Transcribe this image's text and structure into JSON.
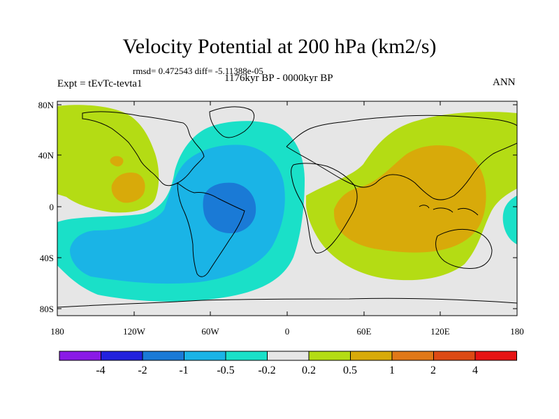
{
  "header": {
    "title": "Velocity Potential at 200 hPa (km2/s)",
    "stats": "rmsd= 0.472543 diff= -5.11388e-05",
    "experiment": "Expt = tEvTc-tevta1",
    "period": "1176kyr BP - 0000kyr BP",
    "season": "ANN"
  },
  "axes": {
    "lat_labels": [
      "80N",
      "40N",
      "0",
      "40S",
      "80S"
    ],
    "lon_labels": [
      "180",
      "120W",
      "60W",
      "0",
      "60E",
      "120E",
      "180"
    ]
  },
  "colorbar": {
    "labels": [
      "-4",
      "-2",
      "-1",
      "-0.5",
      "-0.2",
      "0.2",
      "0.5",
      "1",
      "2",
      "4"
    ],
    "colors": [
      "#8a1ae6",
      "#2222dd",
      "#1a7ad6",
      "#1ab4e6",
      "#1ae0c8",
      "#e6e6e6",
      "#b4dc14",
      "#d8aa0a",
      "#e07818",
      "#dd4a14",
      "#e61414"
    ]
  },
  "map_colors": {
    "background": "#e6e6e6",
    "neg_02": "#1ae0c8",
    "neg_05": "#1ab4e6",
    "neg_1": "#1a7ad6",
    "pos_02": "#b4dc14",
    "pos_05": "#d8aa0a",
    "coast": "#000000"
  }
}
